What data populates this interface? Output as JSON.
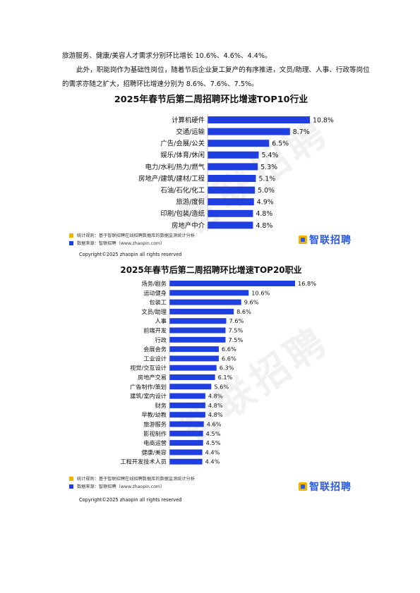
{
  "colors": {
    "bar": "#1f3fe0",
    "logo": "#2f5ad8",
    "stat_square": "#f2b400",
    "source_square": "#1f3fe0"
  },
  "text": {
    "p1": "旅游服务、健康/美容人才需求分别环比增长 10.6%、4.6%、4.4%。",
    "p2": "此外，职能岗作为基础性岗位，随着节后企业复工复产的有序推进，文员/助理、人事、行政等岗位的需求亦随之扩大，招聘环比增速分别为 8.6%、7.6%、7.5%。"
  },
  "panels": [
    {
      "stat_note": "统计规则：基于智联招聘在线招聘数据库的数据监测统计分析",
      "source_note": "数据来源：智联招聘（www.zhaopin.com）",
      "logo": "智联招聘",
      "copyright": "Copyright©2025 zhaopin all rights reserved",
      "watermark": "智联招聘"
    },
    {
      "stat_note": "统计规则：基于智联招聘在线招聘数据库的数据监测统计分析",
      "source_note": "数据来源：智联招聘（www.zhaopin.com）",
      "logo": "智联招聘",
      "copyright": "Copyright©2025 zhaopin all rights reserved",
      "watermark": "智联招聘"
    }
  ],
  "chart_data": [
    {
      "type": "bar",
      "orientation": "horizontal",
      "title": "2025年春节后第二周招聘环比增速TOP10行业",
      "categories": [
        "计算机硬件",
        "交通/运输",
        "广告/会展/公关",
        "娱乐/体育/休闲",
        "电力/水利/热力/燃气",
        "房地产/建筑/建材/工程",
        "石油/石化/化工",
        "旅游/度假",
        "印刷/包装/造纸",
        "房地产中介"
      ],
      "values": [
        10.8,
        8.7,
        6.5,
        5.4,
        5.3,
        5.1,
        5.0,
        4.9,
        4.8,
        4.8
      ],
      "labels": [
        "10.8%",
        "8.7%",
        "6.5%",
        "5.4%",
        "5.3%",
        "5.1%",
        "5.0%",
        "4.9%",
        "4.8%",
        "4.8%"
      ],
      "unit": "%",
      "grid": false,
      "legend": "none"
    },
    {
      "type": "bar",
      "orientation": "horizontal",
      "title": "2025年春节后第二周招聘环比增速TOP20职业",
      "categories": [
        "场务/剧务",
        "运动健身",
        "包装工",
        "文员/助理",
        "人事",
        "前端开发",
        "行政",
        "会展会务",
        "工业设计",
        "视觉/交互设计",
        "房地产交易",
        "广告制作/策划",
        "建筑/室内设计",
        "财务",
        "早教/幼教",
        "旅游服务",
        "影视制作",
        "电商运营",
        "健康/美容",
        "工程开发技术人员"
      ],
      "values": [
        16.8,
        10.6,
        9.6,
        8.6,
        7.6,
        7.5,
        7.5,
        6.6,
        6.6,
        6.3,
        6.1,
        5.6,
        4.8,
        4.8,
        4.8,
        4.6,
        4.5,
        4.5,
        4.4,
        4.4
      ],
      "labels": [
        "16.8%",
        "10.6%",
        "9.6%",
        "8.6%",
        "7.6%",
        "7.5%",
        "7.5%",
        "6.6%",
        "6.6%",
        "6.3%",
        "6.1%",
        "5.6%",
        "4.8%",
        "4.8%",
        "4.8%",
        "4.6%",
        "4.5%",
        "4.5%",
        "4.4%",
        "4.4%"
      ],
      "unit": "%",
      "grid": false,
      "legend": "none"
    }
  ]
}
